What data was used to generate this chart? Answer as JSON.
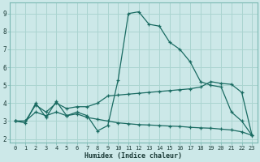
{
  "xlabel": "Humidex (Indice chaleur)",
  "bg_color": "#cce8e8",
  "grid_color": "#aad4d0",
  "line_color": "#1a6b62",
  "xlim": [
    -0.5,
    23.5
  ],
  "ylim": [
    1.8,
    9.6
  ],
  "xticks": [
    0,
    1,
    2,
    3,
    4,
    5,
    6,
    7,
    8,
    9,
    10,
    11,
    12,
    13,
    14,
    15,
    16,
    17,
    18,
    19,
    20,
    21,
    22,
    23
  ],
  "yticks": [
    2,
    3,
    4,
    5,
    6,
    7,
    8,
    9
  ],
  "line1_y": [
    3.0,
    2.9,
    4.0,
    3.2,
    4.1,
    3.3,
    3.5,
    3.3,
    2.45,
    2.75,
    5.3,
    9.0,
    9.1,
    8.4,
    8.3,
    7.4,
    7.0,
    6.3,
    5.2,
    5.0,
    4.9,
    3.5,
    3.0,
    2.2
  ],
  "line2_y": [
    3.0,
    3.0,
    3.9,
    3.5,
    4.0,
    3.7,
    3.8,
    3.8,
    4.0,
    4.4,
    4.45,
    4.5,
    4.55,
    4.6,
    4.65,
    4.7,
    4.75,
    4.8,
    4.9,
    5.2,
    5.1,
    5.05,
    4.6,
    2.2
  ],
  "line3_y": [
    3.0,
    3.0,
    3.5,
    3.3,
    3.5,
    3.3,
    3.4,
    3.2,
    3.1,
    3.0,
    2.9,
    2.85,
    2.8,
    2.78,
    2.75,
    2.72,
    2.7,
    2.65,
    2.62,
    2.6,
    2.55,
    2.5,
    2.4,
    2.2
  ]
}
